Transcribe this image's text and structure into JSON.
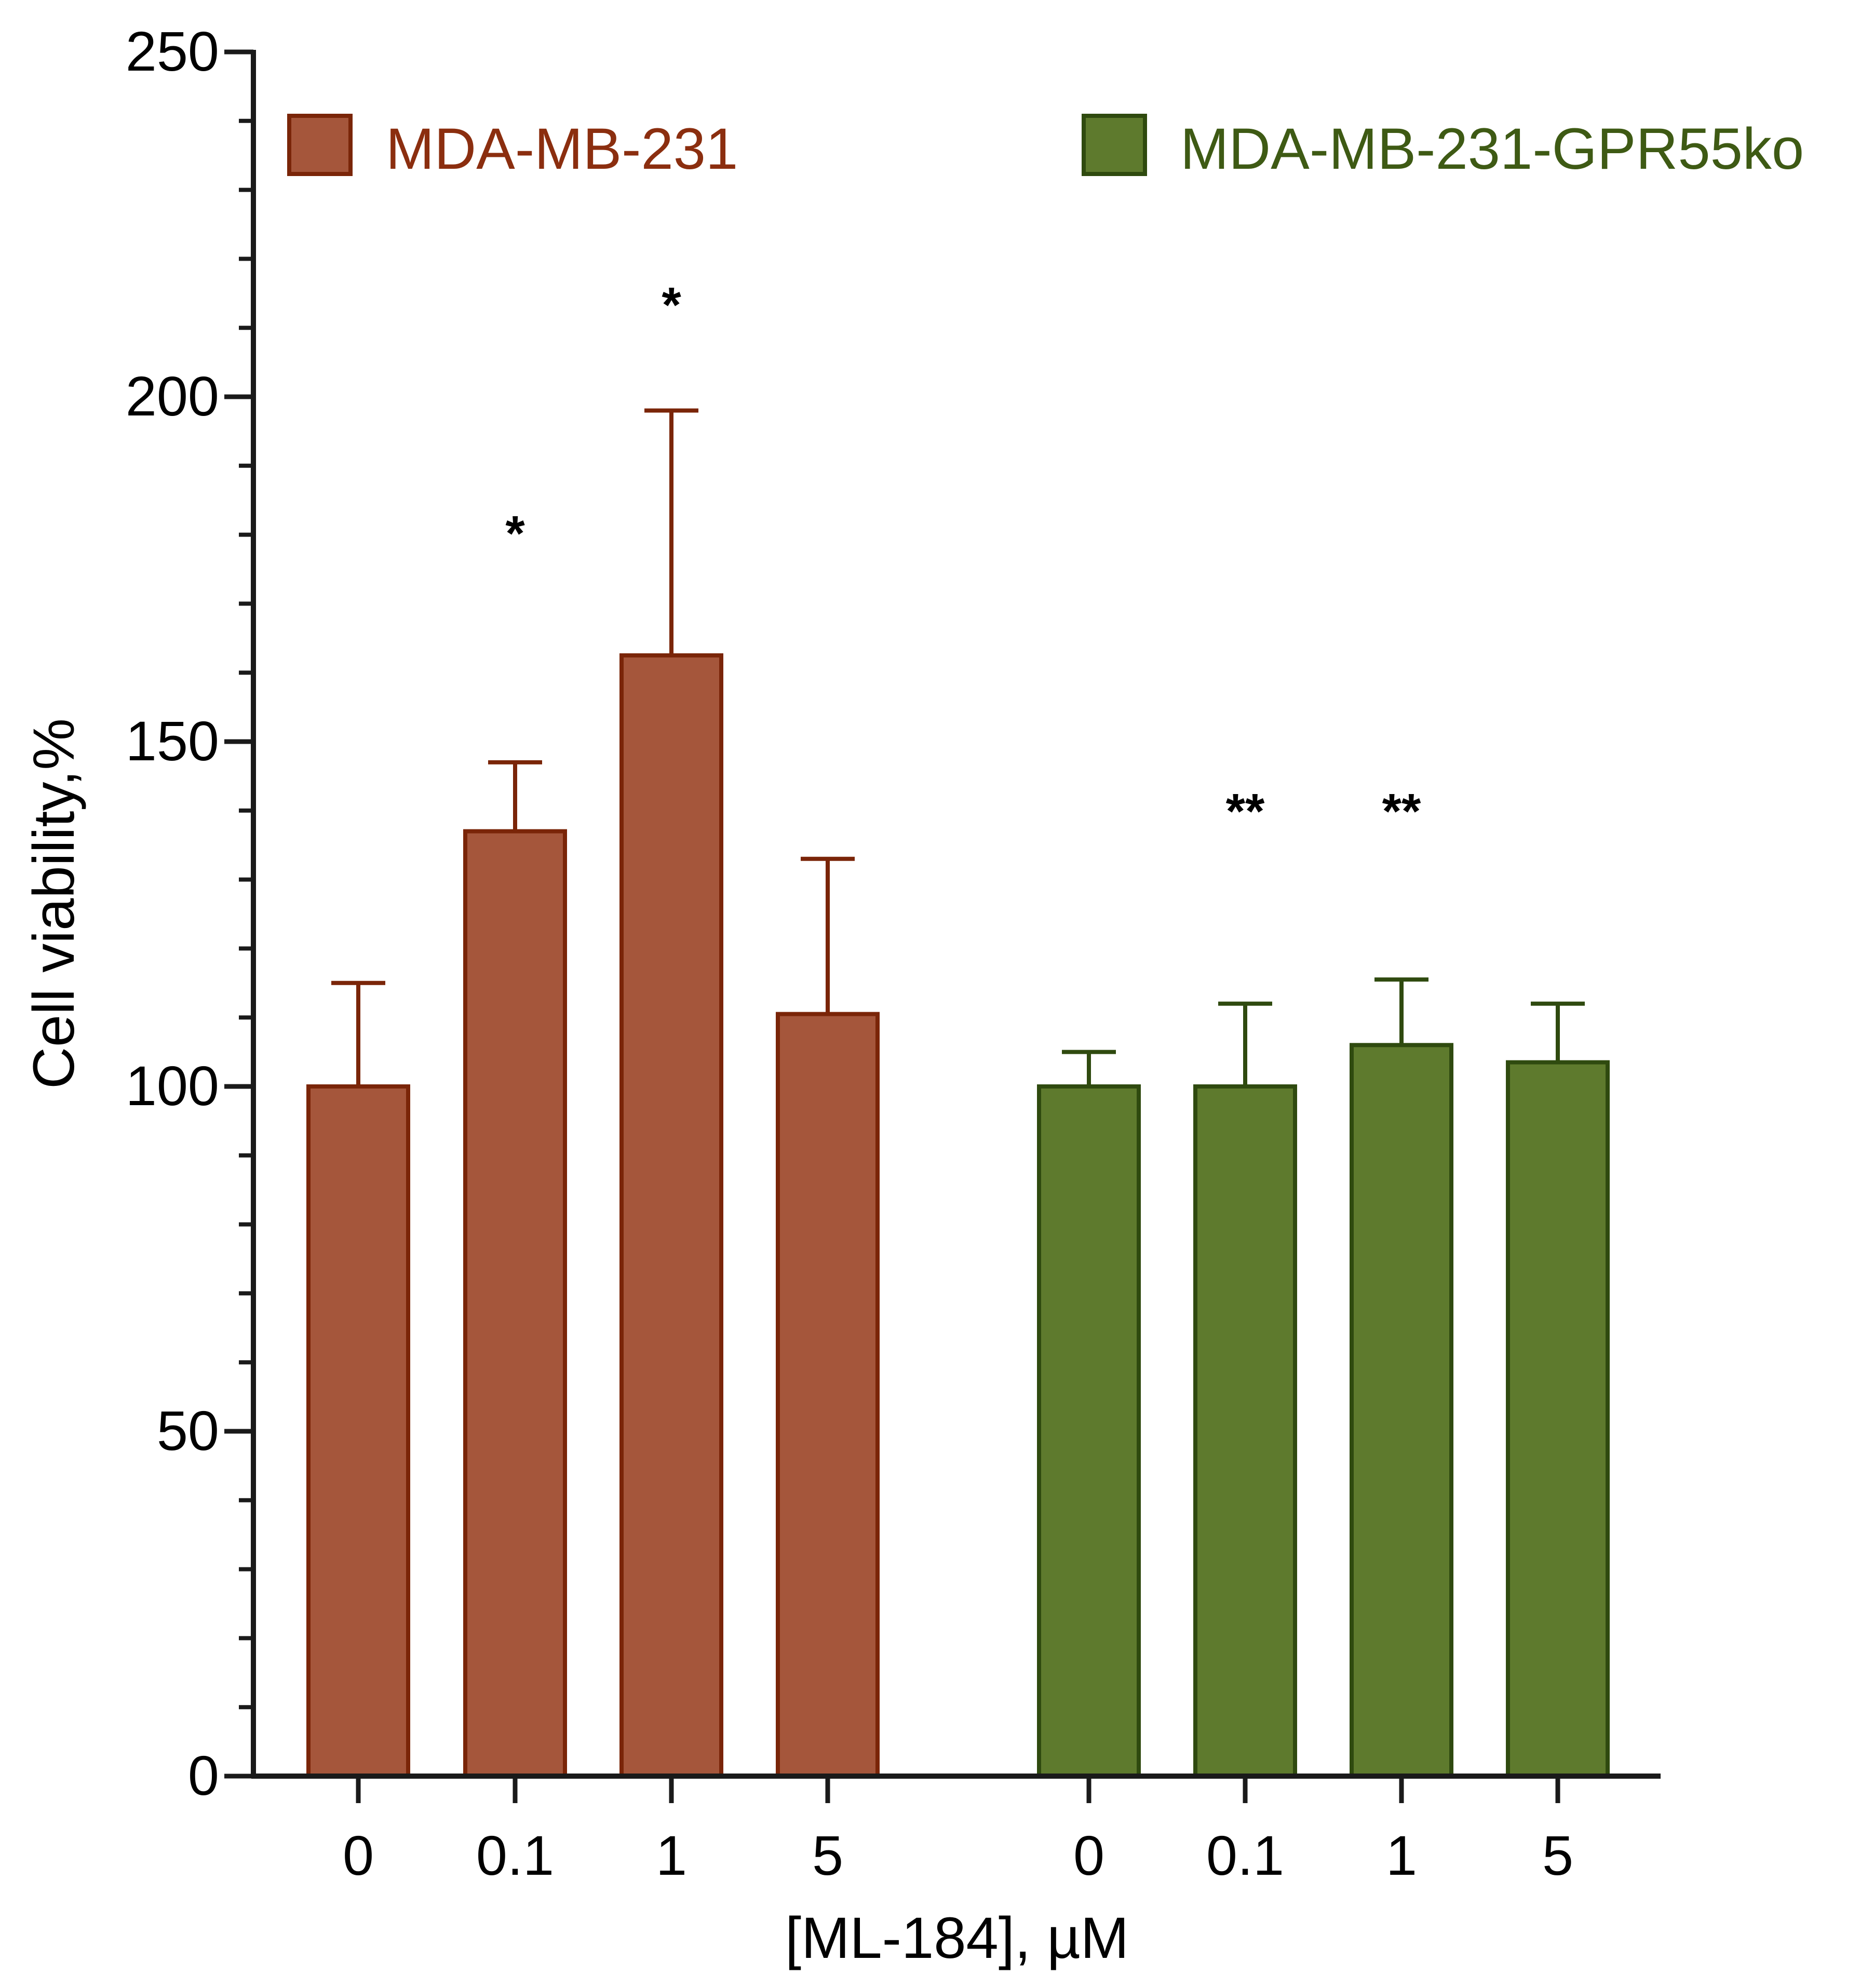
{
  "chart_data": {
    "type": "bar",
    "title": "",
    "xlabel": "[ML-184], µM",
    "ylabel": "Cell viability,%",
    "ylim": [
      0,
      250
    ],
    "y_ticks": [
      0,
      50,
      100,
      150,
      200,
      250
    ],
    "y_minor_step": 10,
    "grid": false,
    "legend_position": "top",
    "series": [
      {
        "name": "MDA-MB-231",
        "fill": "#A5563B",
        "stroke": "#7A2508",
        "text_color": "#8B2E0F",
        "categories": [
          "0",
          "0.1",
          "1",
          "5"
        ],
        "values": [
          100,
          137,
          162.5,
          110.5
        ],
        "error_upper": [
          115,
          147,
          198,
          133
        ],
        "significance": [
          "",
          "*",
          "*",
          ""
        ]
      },
      {
        "name": "MDA-MB-231-GPR55ko",
        "fill": "#5E7A2D",
        "stroke": "#2F4A0F",
        "text_color": "#3E5A14",
        "categories": [
          "0",
          "0.1",
          "1",
          "5"
        ],
        "values": [
          100,
          100,
          106,
          103.5
        ],
        "error_upper": [
          105,
          112,
          115.5,
          112
        ],
        "significance": [
          "",
          "**",
          "**",
          ""
        ]
      }
    ]
  }
}
